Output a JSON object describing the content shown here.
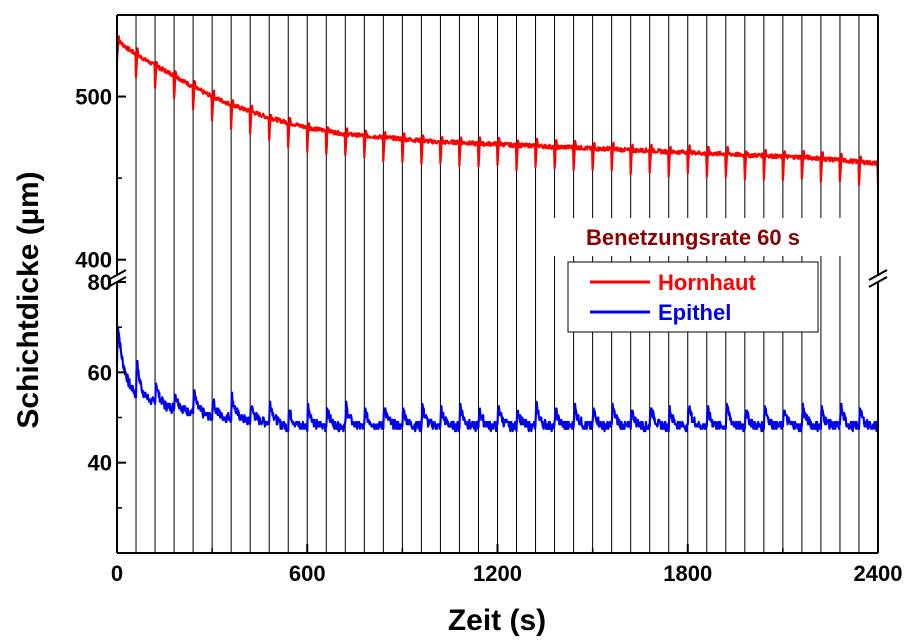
{
  "chart_data": {
    "type": "line",
    "xlabel": "Zeit (s)",
    "ylabel": "Schichtdicke (µm)",
    "xlim": [
      0,
      2400
    ],
    "x_ticks": [
      0,
      600,
      1200,
      1800,
      2400
    ],
    "x_tick_labels": [
      "0",
      "600",
      "1200",
      "1800",
      "2400"
    ],
    "y_axis_broken": true,
    "y_upper_segment": {
      "ylim": [
        390,
        550
      ],
      "ticks": [
        400,
        500
      ],
      "tick_labels": [
        "400",
        "500"
      ]
    },
    "y_lower_segment": {
      "ylim": [
        20,
        80
      ],
      "ticks": [
        40,
        60,
        80
      ],
      "tick_labels": [
        "40",
        "60",
        "80"
      ]
    },
    "wetting_interval_s": 60,
    "annotation": "Benetzungsrate 60 s",
    "legend_position": "right-middle",
    "series": [
      {
        "name": "Hornhaut",
        "color": "#ff0000",
        "segment": "upper",
        "x": [
          0,
          30,
          60,
          120,
          180,
          240,
          300,
          360,
          420,
          480,
          540,
          600,
          660,
          720,
          780,
          840,
          900,
          960,
          1020,
          1080,
          1140,
          1200,
          1260,
          1320,
          1380,
          1440,
          1500,
          1560,
          1620,
          1680,
          1740,
          1800,
          1860,
          1920,
          1980,
          2040,
          2100,
          2160,
          2220,
          2280,
          2340,
          2400
        ],
        "values": [
          535,
          530,
          526,
          519,
          513,
          506,
          500,
          495,
          491,
          487,
          484,
          481,
          479,
          477,
          476,
          475,
          474,
          473,
          472,
          472,
          471,
          471,
          470,
          470,
          469,
          469,
          468,
          468,
          467,
          467,
          466,
          466,
          465,
          465,
          464,
          464,
          463,
          463,
          462,
          461,
          460,
          459
        ]
      },
      {
        "name": "Epithel",
        "color": "#0000ee",
        "segment": "lower",
        "x": [
          0,
          30,
          60,
          120,
          180,
          240,
          300,
          360,
          420,
          480,
          540,
          600,
          660,
          720,
          780,
          840,
          900,
          960,
          1020,
          1080,
          1140,
          1200,
          1260,
          1320,
          1380,
          1440,
          1500,
          1560,
          1620,
          1680,
          1740,
          1800,
          1860,
          1920,
          1980,
          2040,
          2100,
          2160,
          2220,
          2280,
          2340,
          2400
        ],
        "values": [
          62,
          58,
          55,
          53,
          52,
          51,
          50,
          50,
          49,
          49,
          48,
          48,
          48,
          48,
          48,
          48,
          48,
          48,
          48,
          48,
          48,
          48,
          48,
          48,
          48,
          48,
          48,
          48,
          48,
          48,
          48,
          48,
          48,
          48,
          48,
          48,
          48,
          48,
          48,
          48,
          48,
          48
        ]
      }
    ]
  }
}
